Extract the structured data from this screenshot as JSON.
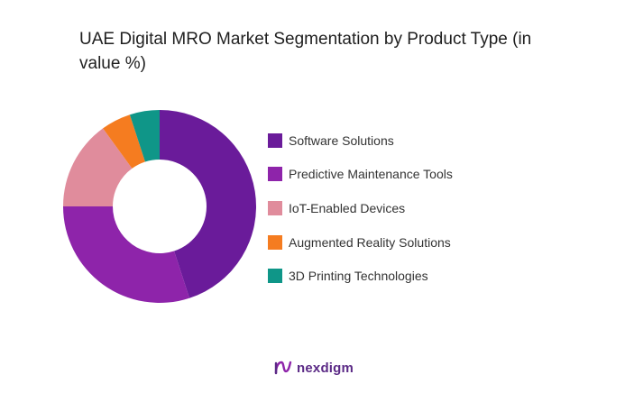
{
  "title": "UAE Digital MRO Market Segmentation by Product Type (in value %)",
  "chart_data": {
    "type": "pie",
    "style": "donut",
    "title": "UAE Digital MRO Market Segmentation by Product Type (in value %)",
    "categories": [
      "Software Solutions",
      "Predictive Maintenance Tools",
      "IoT-Enabled Devices",
      "Augmented Reality Solutions",
      "3D Printing Technologies"
    ],
    "values": [
      45,
      30,
      15,
      5,
      5
    ],
    "colors": [
      "#6a1b9a",
      "#8e24aa",
      "#e08c9c",
      "#f57c20",
      "#0f9688"
    ],
    "legend_position": "right"
  },
  "brand": {
    "name": "nexdigm",
    "icon": "nexdigm-logo-icon"
  }
}
